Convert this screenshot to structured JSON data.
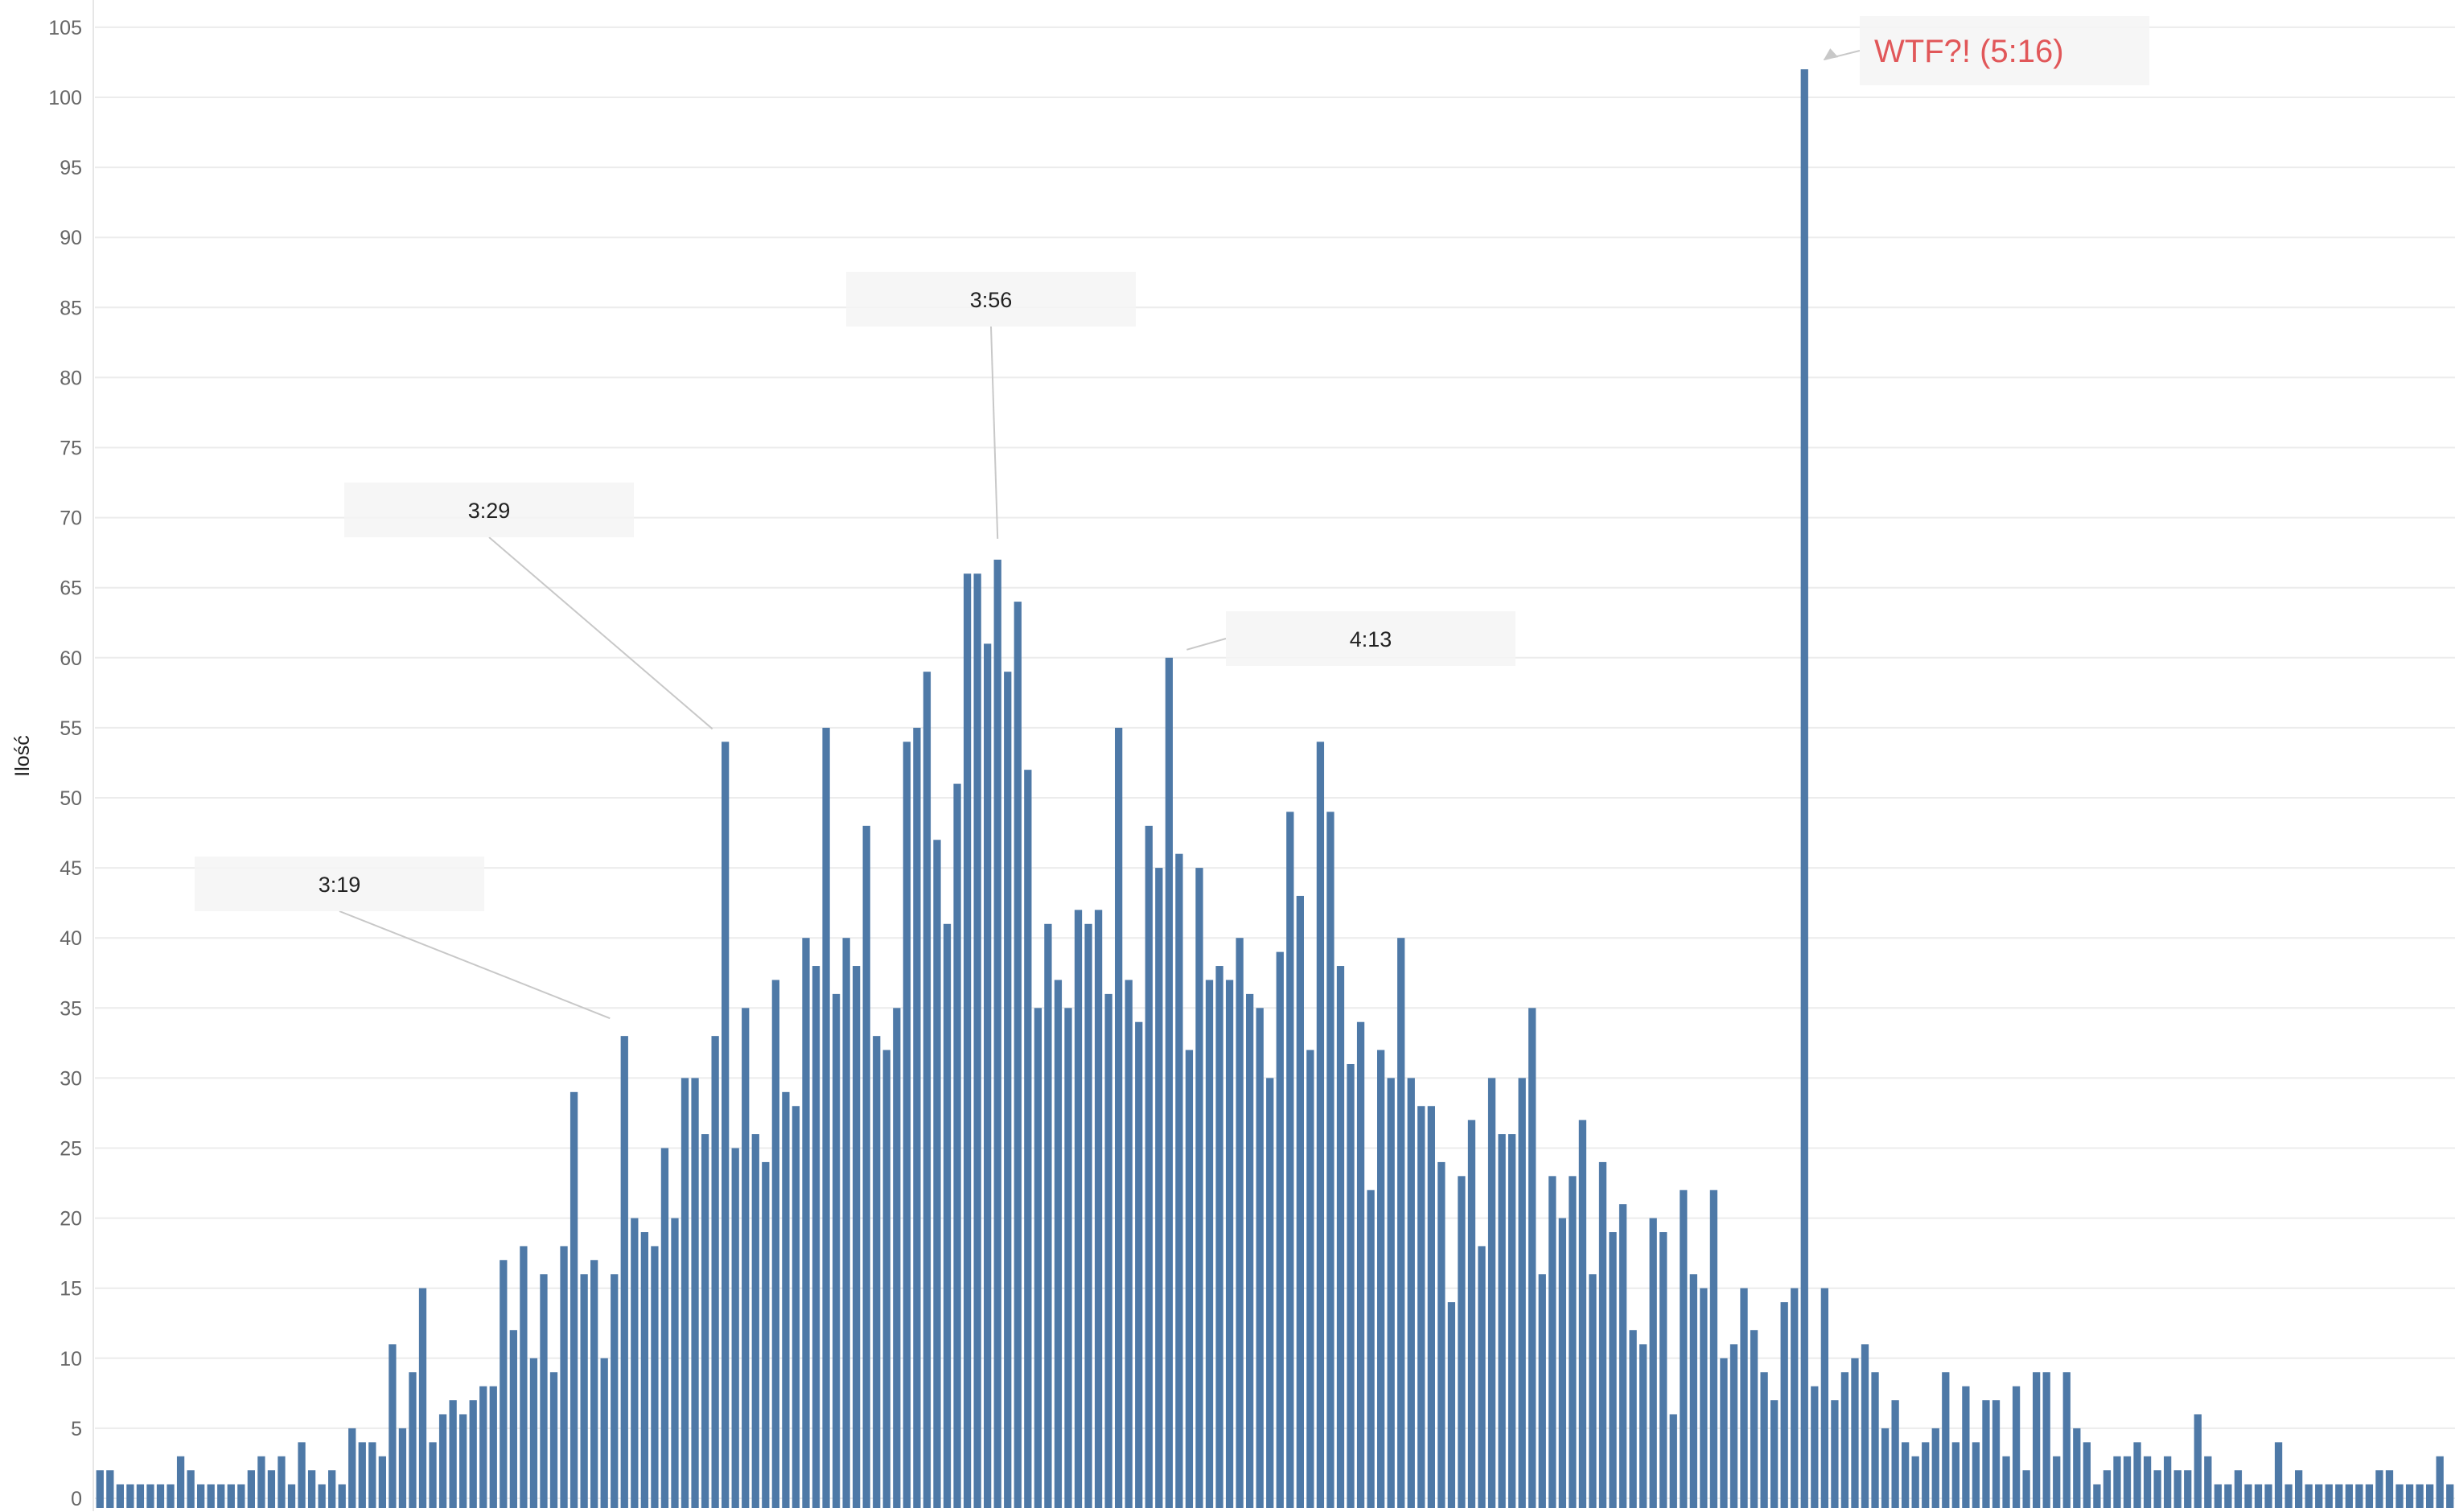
{
  "chart_data": {
    "type": "bar",
    "ylabel": "Ilość",
    "xlabel": "",
    "ylim": [
      0,
      105
    ],
    "yticks": [
      0,
      5,
      10,
      15,
      20,
      25,
      30,
      35,
      40,
      45,
      50,
      55,
      60,
      65,
      70,
      75,
      80,
      85,
      90,
      95,
      100,
      105
    ],
    "grid": true,
    "bar_color": "#4e79a7",
    "values": [
      2,
      2,
      1,
      1,
      1,
      1,
      1,
      1,
      3,
      2,
      1,
      1,
      1,
      1,
      1,
      2,
      3,
      2,
      3,
      1,
      4,
      2,
      1,
      2,
      1,
      5,
      4,
      4,
      3,
      11,
      5,
      9,
      15,
      4,
      6,
      7,
      6,
      7,
      8,
      8,
      17,
      12,
      18,
      10,
      16,
      9,
      18,
      29,
      16,
      17,
      10,
      16,
      33,
      20,
      19,
      18,
      25,
      20,
      30,
      30,
      26,
      33,
      54,
      25,
      35,
      26,
      24,
      37,
      29,
      28,
      40,
      38,
      55,
      36,
      40,
      38,
      48,
      33,
      32,
      35,
      54,
      55,
      59,
      47,
      41,
      51,
      66,
      66,
      61,
      67,
      59,
      64,
      52,
      35,
      41,
      37,
      35,
      42,
      41,
      42,
      36,
      55,
      37,
      34,
      48,
      45,
      60,
      46,
      32,
      45,
      37,
      38,
      37,
      40,
      36,
      35,
      30,
      39,
      49,
      43,
      32,
      54,
      49,
      38,
      31,
      34,
      22,
      32,
      30,
      40,
      30,
      28,
      28,
      24,
      14,
      23,
      27,
      18,
      30,
      26,
      26,
      30,
      35,
      16,
      23,
      20,
      23,
      27,
      16,
      24,
      19,
      21,
      12,
      11,
      20,
      19,
      6,
      22,
      16,
      15,
      22,
      10,
      11,
      15,
      12,
      9,
      7,
      14,
      15,
      102,
      8,
      15,
      7,
      9,
      10,
      11,
      9,
      5,
      7,
      4,
      3,
      4,
      5,
      9,
      4,
      8,
      4,
      7,
      7,
      3,
      8,
      2,
      9,
      9,
      3,
      9,
      5,
      4,
      1,
      2,
      3,
      3,
      4,
      3,
      2,
      3,
      2,
      2,
      6,
      3,
      1,
      1,
      2,
      1,
      1,
      1,
      4,
      1,
      2,
      1,
      1,
      1,
      1,
      1,
      1,
      1,
      2,
      2,
      1,
      1,
      1,
      1,
      3,
      1
    ],
    "annotations": [
      {
        "text": "3:19",
        "bar_index": 52,
        "style": "normal"
      },
      {
        "text": "3:29",
        "bar_index": 62,
        "style": "normal"
      },
      {
        "text": "3:56",
        "bar_index": 89,
        "style": "normal"
      },
      {
        "text": "4:13",
        "bar_index": 106,
        "style": "normal"
      },
      {
        "text": "WTF?! (5:16)",
        "bar_index": 169,
        "style": "highlight",
        "color": "#e15759"
      }
    ]
  }
}
